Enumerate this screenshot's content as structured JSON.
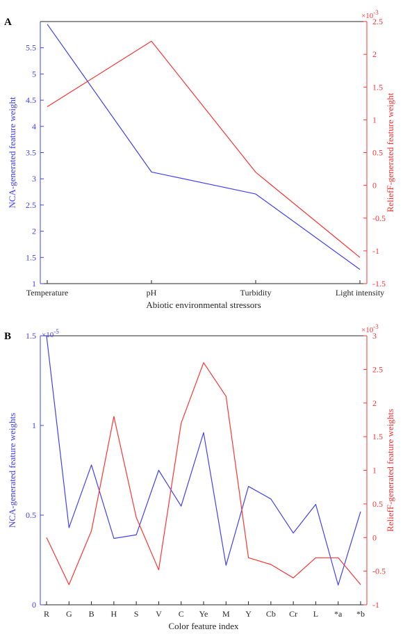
{
  "colors": {
    "nca": "#4040ff",
    "relieff": "#ff3333",
    "axis": "#262626"
  },
  "chart_data": [
    {
      "panel_label": "A",
      "type": "line",
      "categories": [
        "Temperature",
        "pH",
        "Turbidity",
        "Light intensity"
      ],
      "xlabel": "Abiotic environmental stressors",
      "ylabel_left": "NCA-generated feature weight",
      "ylabel_right": "ReliefF-generated feature weight",
      "ylim_left": [
        1,
        6
      ],
      "ylim_right": [
        -1.5,
        2.5
      ],
      "right_multiplier": "×10",
      "right_exponent": "-3",
      "left_ticks": [
        1,
        1.5,
        2,
        2.5,
        3,
        3.5,
        4,
        4.5,
        5,
        5.5
      ],
      "left_tick_labels": [
        "1",
        "1.5",
        "2",
        "2.5",
        "3",
        "3.5",
        "4",
        "4.5",
        "5",
        "5.5"
      ],
      "right_ticks": [
        -1.5,
        -1,
        -0.5,
        0,
        0.5,
        1,
        1.5,
        2,
        2.5
      ],
      "right_tick_labels": [
        "-1.5",
        "-1",
        "-0.5",
        "0",
        "0.5",
        "1",
        "1.5",
        "2",
        "2.5"
      ],
      "series": [
        {
          "axis": "left",
          "values": [
            5.95,
            3.13,
            2.71,
            1.27
          ]
        },
        {
          "axis": "right",
          "values": [
            1.2,
            2.2,
            0.2,
            -1.1
          ]
        }
      ],
      "grid": false
    },
    {
      "panel_label": "B",
      "type": "line",
      "categories": [
        "R",
        "G",
        "B",
        "H",
        "S",
        "V",
        "C",
        "Ye",
        "M",
        "Y",
        "Cb",
        "Cr",
        "L",
        "*a",
        "*b"
      ],
      "xlabel": "Color feature index",
      "ylabel_left": "NCA-generated feature weights",
      "ylabel_right": "ReliefF-generated feature weights",
      "ylim_left": [
        0,
        1.5
      ],
      "ylim_right": [
        -1,
        3
      ],
      "left_multiplier": "×10",
      "left_exponent": "-5",
      "right_multiplier": "×10",
      "right_exponent": "-3",
      "left_ticks": [
        0,
        0.5,
        1,
        1.5
      ],
      "left_tick_labels": [
        "0",
        "0.5",
        "1",
        "1.5"
      ],
      "right_ticks": [
        -1,
        -0.5,
        0,
        0.5,
        1,
        1.5,
        2,
        2.5,
        3
      ],
      "right_tick_labels": [
        "-1",
        "-0.5",
        "0",
        "0.5",
        "1",
        "1.5",
        "2",
        "2.5",
        "3"
      ],
      "series": [
        {
          "axis": "left",
          "values": [
            1.5,
            0.43,
            0.78,
            0.37,
            0.39,
            0.75,
            0.55,
            0.96,
            0.22,
            0.66,
            0.59,
            0.4,
            0.56,
            0.11,
            0.52
          ]
        },
        {
          "axis": "right",
          "values": [
            0,
            -0.7,
            0.1,
            1.8,
            0.3,
            -0.48,
            1.7,
            2.6,
            2.1,
            -0.3,
            -0.4,
            -0.6,
            -0.3,
            -0.3,
            -0.7
          ]
        }
      ],
      "grid": false
    }
  ]
}
